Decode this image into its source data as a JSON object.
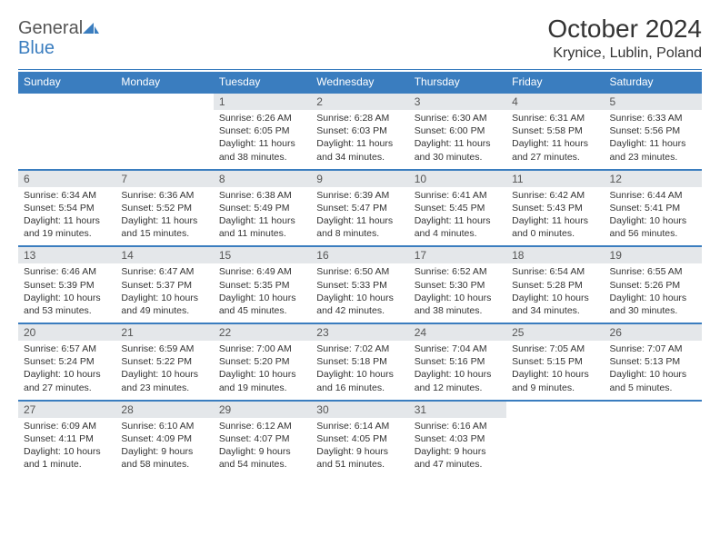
{
  "logo": {
    "text1": "General",
    "text2": "Blue"
  },
  "title": "October 2024",
  "location": "Krynice, Lublin, Poland",
  "colors": {
    "accent": "#3a7dbf",
    "daynum_bg": "#e4e7ea",
    "text": "#333333"
  },
  "day_names": [
    "Sunday",
    "Monday",
    "Tuesday",
    "Wednesday",
    "Thursday",
    "Friday",
    "Saturday"
  ],
  "weeks": [
    [
      null,
      null,
      {
        "n": "1",
        "sr": "Sunrise: 6:26 AM",
        "ss": "Sunset: 6:05 PM",
        "dl": "Daylight: 11 hours and 38 minutes."
      },
      {
        "n": "2",
        "sr": "Sunrise: 6:28 AM",
        "ss": "Sunset: 6:03 PM",
        "dl": "Daylight: 11 hours and 34 minutes."
      },
      {
        "n": "3",
        "sr": "Sunrise: 6:30 AM",
        "ss": "Sunset: 6:00 PM",
        "dl": "Daylight: 11 hours and 30 minutes."
      },
      {
        "n": "4",
        "sr": "Sunrise: 6:31 AM",
        "ss": "Sunset: 5:58 PM",
        "dl": "Daylight: 11 hours and 27 minutes."
      },
      {
        "n": "5",
        "sr": "Sunrise: 6:33 AM",
        "ss": "Sunset: 5:56 PM",
        "dl": "Daylight: 11 hours and 23 minutes."
      }
    ],
    [
      {
        "n": "6",
        "sr": "Sunrise: 6:34 AM",
        "ss": "Sunset: 5:54 PM",
        "dl": "Daylight: 11 hours and 19 minutes."
      },
      {
        "n": "7",
        "sr": "Sunrise: 6:36 AM",
        "ss": "Sunset: 5:52 PM",
        "dl": "Daylight: 11 hours and 15 minutes."
      },
      {
        "n": "8",
        "sr": "Sunrise: 6:38 AM",
        "ss": "Sunset: 5:49 PM",
        "dl": "Daylight: 11 hours and 11 minutes."
      },
      {
        "n": "9",
        "sr": "Sunrise: 6:39 AM",
        "ss": "Sunset: 5:47 PM",
        "dl": "Daylight: 11 hours and 8 minutes."
      },
      {
        "n": "10",
        "sr": "Sunrise: 6:41 AM",
        "ss": "Sunset: 5:45 PM",
        "dl": "Daylight: 11 hours and 4 minutes."
      },
      {
        "n": "11",
        "sr": "Sunrise: 6:42 AM",
        "ss": "Sunset: 5:43 PM",
        "dl": "Daylight: 11 hours and 0 minutes."
      },
      {
        "n": "12",
        "sr": "Sunrise: 6:44 AM",
        "ss": "Sunset: 5:41 PM",
        "dl": "Daylight: 10 hours and 56 minutes."
      }
    ],
    [
      {
        "n": "13",
        "sr": "Sunrise: 6:46 AM",
        "ss": "Sunset: 5:39 PM",
        "dl": "Daylight: 10 hours and 53 minutes."
      },
      {
        "n": "14",
        "sr": "Sunrise: 6:47 AM",
        "ss": "Sunset: 5:37 PM",
        "dl": "Daylight: 10 hours and 49 minutes."
      },
      {
        "n": "15",
        "sr": "Sunrise: 6:49 AM",
        "ss": "Sunset: 5:35 PM",
        "dl": "Daylight: 10 hours and 45 minutes."
      },
      {
        "n": "16",
        "sr": "Sunrise: 6:50 AM",
        "ss": "Sunset: 5:33 PM",
        "dl": "Daylight: 10 hours and 42 minutes."
      },
      {
        "n": "17",
        "sr": "Sunrise: 6:52 AM",
        "ss": "Sunset: 5:30 PM",
        "dl": "Daylight: 10 hours and 38 minutes."
      },
      {
        "n": "18",
        "sr": "Sunrise: 6:54 AM",
        "ss": "Sunset: 5:28 PM",
        "dl": "Daylight: 10 hours and 34 minutes."
      },
      {
        "n": "19",
        "sr": "Sunrise: 6:55 AM",
        "ss": "Sunset: 5:26 PM",
        "dl": "Daylight: 10 hours and 30 minutes."
      }
    ],
    [
      {
        "n": "20",
        "sr": "Sunrise: 6:57 AM",
        "ss": "Sunset: 5:24 PM",
        "dl": "Daylight: 10 hours and 27 minutes."
      },
      {
        "n": "21",
        "sr": "Sunrise: 6:59 AM",
        "ss": "Sunset: 5:22 PM",
        "dl": "Daylight: 10 hours and 23 minutes."
      },
      {
        "n": "22",
        "sr": "Sunrise: 7:00 AM",
        "ss": "Sunset: 5:20 PM",
        "dl": "Daylight: 10 hours and 19 minutes."
      },
      {
        "n": "23",
        "sr": "Sunrise: 7:02 AM",
        "ss": "Sunset: 5:18 PM",
        "dl": "Daylight: 10 hours and 16 minutes."
      },
      {
        "n": "24",
        "sr": "Sunrise: 7:04 AM",
        "ss": "Sunset: 5:16 PM",
        "dl": "Daylight: 10 hours and 12 minutes."
      },
      {
        "n": "25",
        "sr": "Sunrise: 7:05 AM",
        "ss": "Sunset: 5:15 PM",
        "dl": "Daylight: 10 hours and 9 minutes."
      },
      {
        "n": "26",
        "sr": "Sunrise: 7:07 AM",
        "ss": "Sunset: 5:13 PM",
        "dl": "Daylight: 10 hours and 5 minutes."
      }
    ],
    [
      {
        "n": "27",
        "sr": "Sunrise: 6:09 AM",
        "ss": "Sunset: 4:11 PM",
        "dl": "Daylight: 10 hours and 1 minute."
      },
      {
        "n": "28",
        "sr": "Sunrise: 6:10 AM",
        "ss": "Sunset: 4:09 PM",
        "dl": "Daylight: 9 hours and 58 minutes."
      },
      {
        "n": "29",
        "sr": "Sunrise: 6:12 AM",
        "ss": "Sunset: 4:07 PM",
        "dl": "Daylight: 9 hours and 54 minutes."
      },
      {
        "n": "30",
        "sr": "Sunrise: 6:14 AM",
        "ss": "Sunset: 4:05 PM",
        "dl": "Daylight: 9 hours and 51 minutes."
      },
      {
        "n": "31",
        "sr": "Sunrise: 6:16 AM",
        "ss": "Sunset: 4:03 PM",
        "dl": "Daylight: 9 hours and 47 minutes."
      },
      null,
      null
    ]
  ]
}
